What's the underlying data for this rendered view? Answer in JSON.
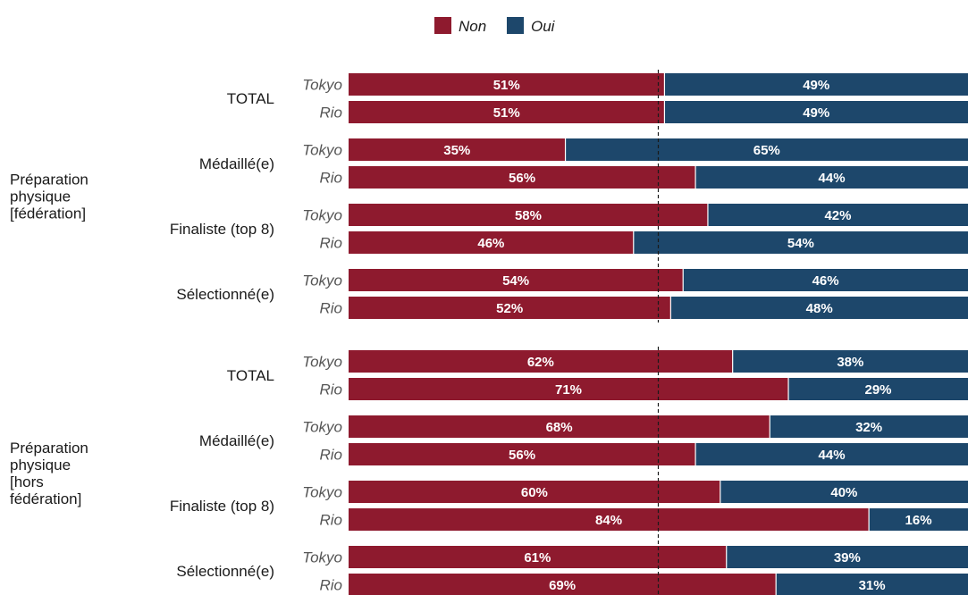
{
  "chart_data": {
    "type": "bar",
    "orientation": "horizontal",
    "stacked": true,
    "percent": true,
    "xlim": [
      0,
      100
    ],
    "reference_line": 50,
    "legend": {
      "position": "top",
      "entries": [
        {
          "name": "Non",
          "color": "#8e1a2e"
        },
        {
          "name": "Oui",
          "color": "#1d476b"
        }
      ]
    },
    "series": [
      {
        "name": "Non",
        "color": "#8e1a2e"
      },
      {
        "name": "Oui",
        "color": "#1d476b"
      }
    ],
    "sections": [
      {
        "label_lines": [
          "Préparation",
          "physique",
          "[fédération]"
        ],
        "groups": [
          {
            "label": "TOTAL",
            "rows": [
              {
                "edition": "Tokyo",
                "non": 51,
                "oui": 49,
                "non_label": "51%",
                "oui_label": "49%"
              },
              {
                "edition": "Rio",
                "non": 51,
                "oui": 49,
                "non_label": "51%",
                "oui_label": "49%"
              }
            ]
          },
          {
            "label": "Médaillé(e)",
            "rows": [
              {
                "edition": "Tokyo",
                "non": 35,
                "oui": 65,
                "non_label": "35%",
                "oui_label": "65%"
              },
              {
                "edition": "Rio",
                "non": 56,
                "oui": 44,
                "non_label": "56%",
                "oui_label": "44%"
              }
            ]
          },
          {
            "label": "Finaliste (top 8)",
            "rows": [
              {
                "edition": "Tokyo",
                "non": 58,
                "oui": 42,
                "non_label": "58%",
                "oui_label": "42%"
              },
              {
                "edition": "Rio",
                "non": 46,
                "oui": 54,
                "non_label": "46%",
                "oui_label": "54%"
              }
            ]
          },
          {
            "label": "Sélectionné(e)",
            "rows": [
              {
                "edition": "Tokyo",
                "non": 54,
                "oui": 46,
                "non_label": "54%",
                "oui_label": "46%"
              },
              {
                "edition": "Rio",
                "non": 52,
                "oui": 48,
                "non_label": "52%",
                "oui_label": "48%"
              }
            ]
          }
        ]
      },
      {
        "label_lines": [
          "Préparation",
          "physique",
          "[hors",
          "fédération]"
        ],
        "groups": [
          {
            "label": "TOTAL",
            "rows": [
              {
                "edition": "Tokyo",
                "non": 62,
                "oui": 38,
                "non_label": "62%",
                "oui_label": "38%"
              },
              {
                "edition": "Rio",
                "non": 71,
                "oui": 29,
                "non_label": "71%",
                "oui_label": "29%"
              }
            ]
          },
          {
            "label": "Médaillé(e)",
            "rows": [
              {
                "edition": "Tokyo",
                "non": 68,
                "oui": 32,
                "non_label": "68%",
                "oui_label": "32%"
              },
              {
                "edition": "Rio",
                "non": 56,
                "oui": 44,
                "non_label": "56%",
                "oui_label": "44%"
              }
            ]
          },
          {
            "label": "Finaliste (top 8)",
            "rows": [
              {
                "edition": "Tokyo",
                "non": 60,
                "oui": 40,
                "non_label": "60%",
                "oui_label": "40%"
              },
              {
                "edition": "Rio",
                "non": 84,
                "oui": 16,
                "non_label": "84%",
                "oui_label": "16%"
              }
            ]
          },
          {
            "label": "Sélectionné(e)",
            "rows": [
              {
                "edition": "Tokyo",
                "non": 61,
                "oui": 39,
                "non_label": "61%",
                "oui_label": "39%"
              },
              {
                "edition": "Rio",
                "non": 69,
                "oui": 31,
                "non_label": "69%",
                "oui_label": "31%"
              }
            ]
          }
        ]
      }
    ]
  }
}
